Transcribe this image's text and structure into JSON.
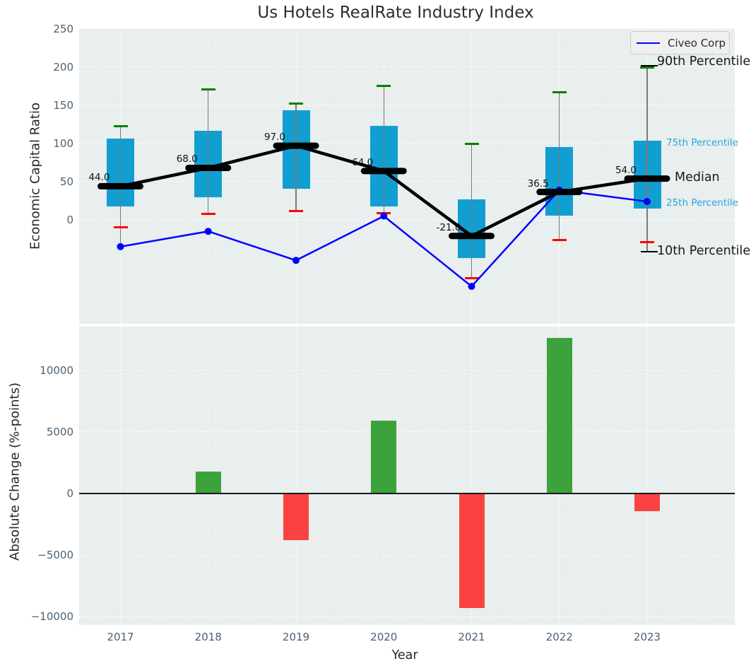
{
  "title": "Us Hotels RealRate Industry Index",
  "legend": {
    "label": "Civeo Corp",
    "line_color": "#0000ff"
  },
  "annotations": {
    "p90": "90th Percentile",
    "p75": "75th Percentile",
    "median": "Median",
    "p25": "25th Percentile",
    "p10": "10th Percentile"
  },
  "top_chart": {
    "ylabel": "Economic Capital Ratio",
    "ytick_labels": [
      "0",
      "50",
      "100",
      "150",
      "200",
      "250"
    ]
  },
  "bottom_chart": {
    "ylabel": "Absolute Change (%-points)",
    "xlabel": "Year",
    "ytick_labels": [
      "−10000",
      "−5000",
      "0",
      "5000",
      "10000"
    ]
  },
  "colors": {
    "axes_background": "#e9eeee",
    "grid": "#ffffff",
    "box_fill": "#119fd2",
    "whisker": "#7a7a7a",
    "cap_high": "#008000",
    "cap_low": "#ff0000",
    "median": "#000000",
    "civeo_line": "#0000ff",
    "bar_positive": "#3ca23c",
    "bar_negative": "#fb4242",
    "tick_text": "#4c6172",
    "percentile_text_cyan": "#23a7db"
  },
  "chart_data": [
    {
      "type": "boxplot+line",
      "title": "Us Hotels RealRate Industry Index",
      "ylabel": "Economic Capital Ratio",
      "x": [
        2017,
        2018,
        2019,
        2020,
        2021,
        2022,
        2023
      ],
      "ylim": [
        -136,
        251
      ],
      "yticks": [
        0,
        50,
        100,
        150,
        200,
        250
      ],
      "grid": true,
      "legend_position": "upper right",
      "boxes": [
        {
          "year": 2017,
          "p10": -10,
          "p25": 18,
          "median": 44.0,
          "p75": 106,
          "p90": 123,
          "whisker_low": -32,
          "whisker_high": 123
        },
        {
          "year": 2018,
          "p10": 8,
          "p25": 30,
          "median": 68.0,
          "p75": 117,
          "p90": 171,
          "whisker_low": 8,
          "whisker_high": 171
        },
        {
          "year": 2019,
          "p10": 12,
          "p25": 41,
          "median": 97.0,
          "p75": 143,
          "p90": 152,
          "whisker_low": 12,
          "whisker_high": 152
        },
        {
          "year": 2020,
          "p10": 9,
          "p25": 18,
          "median": 64.0,
          "p75": 123,
          "p90": 175,
          "whisker_low": 9,
          "whisker_high": 175
        },
        {
          "year": 2021,
          "p10": -76,
          "p25": -50,
          "median": -21.0,
          "p75": 27,
          "p90": 99,
          "whisker_low": -76,
          "whisker_high": 99
        },
        {
          "year": 2022,
          "p10": -26,
          "p25": 6,
          "median": 36.5,
          "p75": 95,
          "p90": 167,
          "whisker_low": -26,
          "whisker_high": 167
        },
        {
          "year": 2023,
          "p10": -29,
          "p25": 15,
          "median": 54.0,
          "p75": 104,
          "p90": 199,
          "whisker_low": -41,
          "whisker_high": 199
        }
      ],
      "median_labels": [
        "44.0",
        "68.0",
        "97.0",
        "64.0",
        "-21.0",
        "36.5",
        "54.0"
      ],
      "series": [
        {
          "name": "Civeo Corp",
          "values": [
            -35,
            -15,
            -53,
            5,
            -87,
            39,
            24
          ]
        },
        {
          "name": "Median",
          "values": [
            44.0,
            68.0,
            97.0,
            64.0,
            -21.0,
            36.5,
            54.0
          ]
        }
      ]
    },
    {
      "type": "bar",
      "ylabel": "Absolute Change (%-points)",
      "xlabel": "Year",
      "categories": [
        2017,
        2018,
        2019,
        2020,
        2021,
        2022,
        2023
      ],
      "values": [
        0,
        1800,
        -3800,
        5900,
        -9300,
        12600,
        -1450
      ],
      "ylim": [
        -10700,
        13500
      ],
      "yticks": [
        -10000,
        -5000,
        0,
        5000,
        10000
      ],
      "grid": true,
      "zero_line": true
    }
  ]
}
